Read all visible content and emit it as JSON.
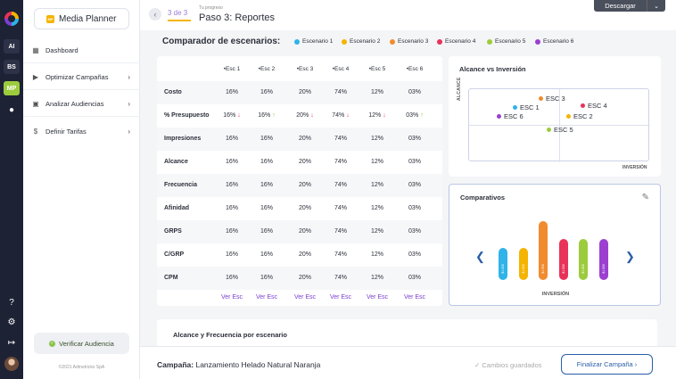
{
  "rail": {
    "items": [
      "AI",
      "BS",
      "MP"
    ]
  },
  "sidebar": {
    "brand_badge": "MP",
    "brand": "Media Planner",
    "items": [
      {
        "label": "Dashboard",
        "icon": "grid-icon"
      },
      {
        "label": "Optimizar Campañas",
        "icon": "megaphone-icon"
      },
      {
        "label": "Analizar Audiencias",
        "icon": "monitor-icon"
      },
      {
        "label": "Definir Tarifas",
        "icon": "dollar-icon"
      }
    ],
    "verify": "Verificar Audiencia",
    "copyright": "©2021 Admetricks SpA"
  },
  "header": {
    "steps": "3 de 3",
    "progress_label": "Tu progreso",
    "title": "Paso 3: Reportes",
    "download": "Descargar"
  },
  "comparador": {
    "title": "Comparador de escenarios:",
    "legend": [
      {
        "name": "Escenario 1",
        "color": "#2fb3e8"
      },
      {
        "name": "Escenario 2",
        "color": "#f5b400"
      },
      {
        "name": "Escenario 3",
        "color": "#f08c2e"
      },
      {
        "name": "Escenario 4",
        "color": "#e8325a"
      },
      {
        "name": "Escenario 5",
        "color": "#9ccc3d"
      },
      {
        "name": "Escenario 6",
        "color": "#9c3fd1"
      }
    ]
  },
  "table": {
    "headers": [
      "•Esc 1",
      "•Esc 2",
      "•Esc 3",
      "•Esc 4",
      "•Esc 5",
      "•Esc 6"
    ],
    "rows": [
      {
        "label": "Costo",
        "values": [
          "16%",
          "16%",
          "20%",
          "74%",
          "12%",
          "03%"
        ]
      },
      {
        "label": "% Presupuesto",
        "values": [
          "16%",
          "16%",
          "20%",
          "74%",
          "12%",
          "03%"
        ],
        "trend": [
          "down",
          "up",
          "down",
          "down",
          "down",
          "up"
        ]
      },
      {
        "label": "Impresiones",
        "values": [
          "16%",
          "16%",
          "20%",
          "74%",
          "12%",
          "03%"
        ]
      },
      {
        "label": "Alcance",
        "values": [
          "16%",
          "16%",
          "20%",
          "74%",
          "12%",
          "03%"
        ]
      },
      {
        "label": "Frecuencia",
        "values": [
          "16%",
          "16%",
          "20%",
          "74%",
          "12%",
          "03%"
        ]
      },
      {
        "label": "Afinidad",
        "values": [
          "16%",
          "16%",
          "20%",
          "74%",
          "12%",
          "03%"
        ]
      },
      {
        "label": "GRPS",
        "values": [
          "16%",
          "16%",
          "20%",
          "74%",
          "12%",
          "03%"
        ]
      },
      {
        "label": "C/GRP",
        "values": [
          "16%",
          "16%",
          "20%",
          "74%",
          "12%",
          "03%"
        ]
      },
      {
        "label": "CPM",
        "values": [
          "16%",
          "16%",
          "20%",
          "74%",
          "12%",
          "03%"
        ]
      }
    ],
    "link": "Ver Esc"
  },
  "scatter": {
    "title": "Alcance vs Inversión",
    "ylabel": "ALCANCE",
    "xlabel": "INVERSIÓN",
    "points": [
      {
        "label": "ESC 1",
        "color": "#2fb3e8"
      },
      {
        "label": "ESC 2",
        "color": "#f5b400"
      },
      {
        "label": "ESC 3",
        "color": "#f08c2e"
      },
      {
        "label": "ESC 4",
        "color": "#e8325a"
      },
      {
        "label": "ESC 5",
        "color": "#9ccc3d"
      },
      {
        "label": "ESC 6",
        "color": "#9c3fd1"
      }
    ]
  },
  "chart_data": {
    "type": "bar",
    "title": "Comparativos",
    "xlabel": "INVERSIÓN",
    "categories": [
      "ESC 1",
      "ESC 2",
      "ESC 3",
      "ESC 4",
      "ESC 5",
      "ESC 6"
    ],
    "values": [
      36,
      36,
      66,
      46,
      46,
      46
    ],
    "bar_labels": [
      "$1.000",
      "$1.000",
      "$1.900",
      "$1.500",
      "$1.500",
      "$1.500"
    ],
    "colors": [
      "#2fb3e8",
      "#f5b400",
      "#f08c2e",
      "#e8325a",
      "#9ccc3d",
      "#9c3fd1"
    ]
  },
  "alcance_frecuencia": {
    "title": "Alcance y Frecuencia por escenario"
  },
  "footer": {
    "campaign_label": "Campaña:",
    "campaign": "Lanzamiento Helado Natural Naranja",
    "saved": "Cambios guardados",
    "finish": "Finalizar Campaña"
  }
}
